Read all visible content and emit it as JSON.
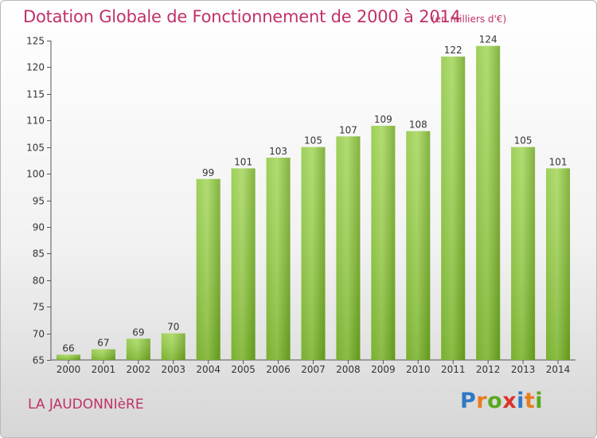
{
  "header": {
    "title": "Dotation Globale de Fonctionnement de 2000 à 2014",
    "unit": "(en milliers d'€)"
  },
  "footer": {
    "commune": "LA JAUDONNIèRE",
    "logo": [
      "P",
      "r",
      "o",
      "x",
      "i",
      "t",
      "i"
    ],
    "logo_colors": [
      "#2f78c4",
      "#e87d1e",
      "#5aa820",
      "#d8342a",
      "#2f78c4",
      "#e87d1e",
      "#5aa820"
    ]
  },
  "chart_data": {
    "type": "bar",
    "categories": [
      "2000",
      "2001",
      "2002",
      "2003",
      "2004",
      "2005",
      "2006",
      "2007",
      "2008",
      "2009",
      "2010",
      "2011",
      "2012",
      "2013",
      "2014"
    ],
    "values": [
      66,
      67,
      69,
      70,
      99,
      101,
      103,
      105,
      107,
      109,
      108,
      122,
      124,
      105,
      101
    ],
    "title": "Dotation Globale de Fonctionnement de 2000 à 2014",
    "ylim": [
      65,
      125
    ],
    "yticks": [
      65,
      70,
      75,
      80,
      85,
      90,
      95,
      100,
      105,
      110,
      115,
      120,
      125
    ],
    "grid": false,
    "bar_color": "#7dbb2a",
    "bar_color_light": "#a3d95a"
  }
}
